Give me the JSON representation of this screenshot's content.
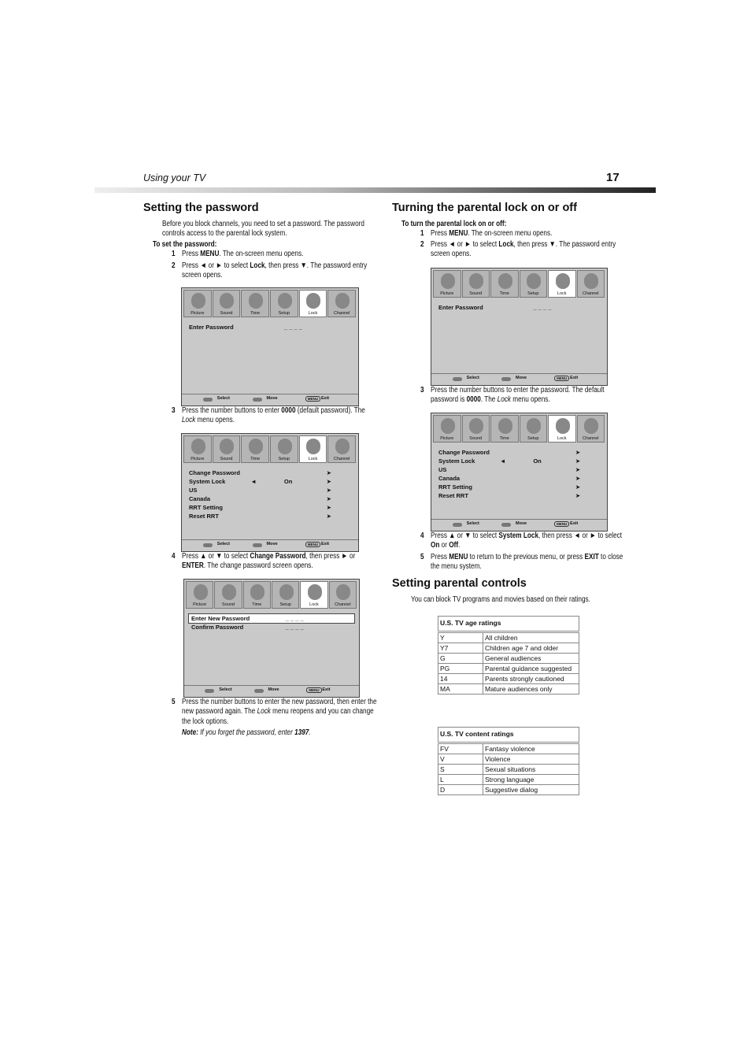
{
  "header": {
    "section": "Using your TV",
    "page": "17"
  },
  "left": {
    "heading": "Setting the password",
    "intro": "Before you block channels, you need to set a password. The password controls access to the parental lock system.",
    "subheading": "To set the password:",
    "steps": [
      {
        "num": "1",
        "runs": [
          "Press ",
          {
            "bold": "MENU"
          },
          ". The on-screen menu opens."
        ]
      },
      {
        "num": "2",
        "runs": [
          "Press ◄ or ► to select ",
          {
            "bold": "Lock"
          },
          ", then press ▼. The password entry screen opens."
        ]
      },
      {
        "num": "3",
        "runs": [
          "Press the number buttons to enter ",
          {
            "bold": "0000"
          },
          " (default password). The ",
          {
            "italic": "Lock"
          },
          " menu opens."
        ]
      },
      {
        "num": "4",
        "runs": [
          "Press ▲ or ▼ to select ",
          {
            "bold": "Change Password"
          },
          ", then press ► or ",
          {
            "bold": "ENTER"
          },
          ". The change password screen opens."
        ]
      },
      {
        "num": "5",
        "runs": [
          "Press the number buttons to enter the new password, then enter the new password again. The ",
          {
            "italic": "Lock"
          },
          " menu reopens and you can change the lock options."
        ]
      }
    ],
    "note": [
      {
        "bolditalic": "Note:"
      },
      {
        "italic": " If you forget the password, enter "
      },
      {
        "bolditalic": "1397"
      },
      {
        "italic": "."
      }
    ]
  },
  "right": {
    "heading": "Turning the parental lock on or off",
    "subheading": "To turn the parental lock on or off:",
    "steps": [
      {
        "num": "1",
        "runs": [
          "Press ",
          {
            "bold": "MENU"
          },
          ". The on-screen menu opens."
        ]
      },
      {
        "num": "2",
        "runs": [
          "Press ◄ or ► to select ",
          {
            "bold": "Lock"
          },
          ", then press ▼. The password entry screen opens."
        ]
      },
      {
        "num": "3",
        "runs": [
          "Press the number buttons to enter the password. The default password is ",
          {
            "bold": "0000"
          },
          ". The ",
          {
            "italic": "Lock"
          },
          " menu opens."
        ]
      },
      {
        "num": "4",
        "runs": [
          "Press ▲ or ▼ to select ",
          {
            "bold": "System Lock"
          },
          ", then press ◄ or ► to select ",
          {
            "bold": "On"
          },
          " or ",
          {
            "bold": "Off"
          },
          "."
        ]
      },
      {
        "num": "5",
        "runs": [
          "Press ",
          {
            "bold": "MENU"
          },
          " to return to the previous menu, or press ",
          {
            "bold": "EXIT"
          },
          " to close the menu system."
        ]
      }
    ],
    "heading2": "Setting parental controls",
    "intro2": "You can block TV programs and movies based on their ratings.",
    "tables": [
      {
        "title": "U.S. TV age ratings",
        "rows": [
          [
            "Y",
            "All children"
          ],
          [
            "Y7",
            "Children age 7 and older"
          ],
          [
            "G",
            "General audiences"
          ],
          [
            "PG",
            "Parental guidance suggested"
          ],
          [
            "14",
            "Parents strongly cautioned"
          ],
          [
            "MA",
            "Mature audiences only"
          ]
        ]
      },
      {
        "title": "U.S. TV content ratings",
        "rows": [
          [
            "FV",
            "Fantasy violence"
          ],
          [
            "V",
            "Violence"
          ],
          [
            "S",
            "Sexual situations"
          ],
          [
            "L",
            "Strong language"
          ],
          [
            "D",
            "Suggestive dialog"
          ]
        ]
      }
    ]
  },
  "screens": [
    {
      "tabs": [
        "Picture",
        "Sound",
        "Time",
        "Setup",
        "Lock",
        "Channel"
      ],
      "active_tab": 4,
      "rows": [
        {
          "label": "Enter Password",
          "value": "_ _ _ _"
        }
      ],
      "footer": [
        "Select",
        "Move",
        "MENU",
        "Exit"
      ]
    },
    {
      "tabs": [
        "Picture",
        "Sound",
        "Time",
        "Setup",
        "Lock",
        "Channel"
      ],
      "active_tab": 4,
      "rows": [
        {
          "label": "Change Password",
          "right": "➤"
        },
        {
          "label": "System Lock",
          "left": "◄",
          "value": "On",
          "right": "➤"
        },
        {
          "label": "US",
          "right": "➤"
        },
        {
          "label": "Canada",
          "right": "➤"
        },
        {
          "label": "RRT Setting",
          "right": "➤"
        },
        {
          "label": "Reset RRT",
          "right": "➤"
        }
      ],
      "footer": [
        "Select",
        "Move",
        "MENU",
        "Exit"
      ]
    },
    {
      "tabs": [
        "Picture",
        "Sound",
        "Time",
        "Setup",
        "Lock",
        "Channel"
      ],
      "active_tab": 4,
      "rows": [
        {
          "label": "Enter New Password",
          "value": "_ _ _ _",
          "selected": true
        },
        {
          "label": "Confirm Password",
          "value": "_ _ _ _"
        }
      ],
      "footer": [
        "Select",
        "Move",
        "MENU",
        "Exit"
      ]
    },
    {
      "tabs": [
        "Picture",
        "Sound",
        "Time",
        "Setup",
        "Lock",
        "Channel"
      ],
      "active_tab": 4,
      "rows": [
        {
          "label": "Enter Password",
          "value": "_ _ _ _"
        }
      ],
      "footer": [
        "Select",
        "Move",
        "MENU",
        "Exit"
      ]
    },
    {
      "tabs": [
        "Picture",
        "Sound",
        "Time",
        "Setup",
        "Lock",
        "Channel"
      ],
      "active_tab": 4,
      "rows": [
        {
          "label": "Change Password",
          "right": "➤"
        },
        {
          "label": "System Lock",
          "left": "◄",
          "value": "On",
          "right": "➤"
        },
        {
          "label": "US",
          "right": "➤"
        },
        {
          "label": "Canada",
          "right": "➤"
        },
        {
          "label": "RRT Setting",
          "right": "➤"
        },
        {
          "label": "Reset RRT",
          "right": "➤"
        }
      ],
      "footer": [
        "Select",
        "Move",
        "MENU",
        "Exit"
      ]
    }
  ]
}
